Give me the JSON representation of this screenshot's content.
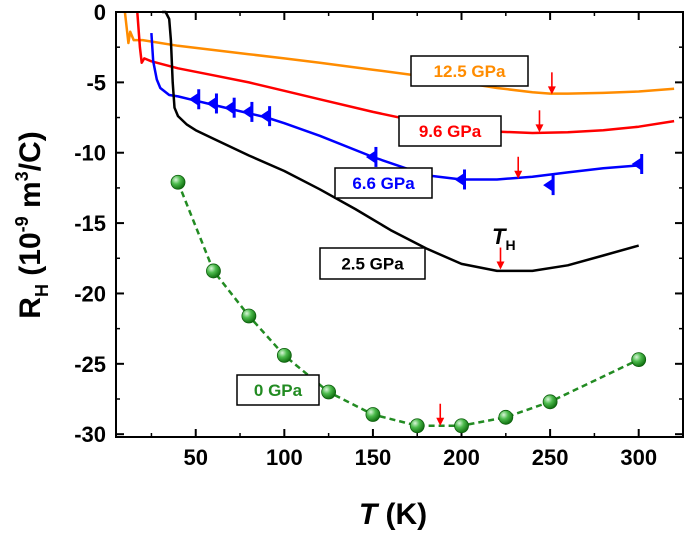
{
  "chart_data": {
    "type": "line",
    "title": "",
    "xlabel": {
      "italic": "T",
      "rest": " (K)"
    },
    "ylabel": {
      "base": "R",
      "sub": "H",
      "pre": " (10",
      "exp": "-9",
      "mid": " m",
      "exp2": "3",
      "post": "/C)"
    },
    "xlim": [
      5,
      325
    ],
    "ylim": [
      -30.2,
      0
    ],
    "xticks": [
      50,
      100,
      150,
      200,
      250,
      300
    ],
    "yticks": [
      0,
      -5,
      -10,
      -15,
      -20,
      -25,
      -30
    ],
    "annotation": {
      "italic": "T",
      "sub": "H"
    },
    "series": [
      {
        "name": "12.5 GPa",
        "label": "12.5 GPa",
        "color": "#ff8c00",
        "label_boxed": true,
        "x": [
          10,
          12,
          13,
          15,
          20,
          40,
          60,
          80,
          100,
          120,
          150,
          180,
          200,
          220,
          240,
          250,
          260,
          280,
          300,
          320
        ],
        "y": [
          0,
          -2.2,
          -1.4,
          -2.0,
          -2.0,
          -2.4,
          -2.7,
          -3.0,
          -3.3,
          -3.6,
          -4.1,
          -4.6,
          -5.0,
          -5.4,
          -5.7,
          -5.8,
          -5.8,
          -5.75,
          -5.65,
          -5.45
        ],
        "marker_x": 251,
        "marker_y": -5.85
      },
      {
        "name": "9.6 GPa",
        "label": "9.6 GPa",
        "color": "#ff0000",
        "label_boxed": true,
        "x": [
          17,
          18.5,
          19.5,
          21,
          25,
          40,
          60,
          80,
          100,
          120,
          150,
          180,
          200,
          220,
          240,
          260,
          280,
          300,
          320
        ],
        "y": [
          0,
          -2.5,
          -3.6,
          -3.3,
          -3.5,
          -4.0,
          -4.5,
          -5.0,
          -5.6,
          -6.2,
          -7.1,
          -7.9,
          -8.3,
          -8.5,
          -8.6,
          -8.55,
          -8.4,
          -8.15,
          -7.75
        ],
        "marker_x": 244,
        "marker_y": -8.55
      },
      {
        "name": "6.6 GPa",
        "label": "6.6 GPa",
        "color": "#0000ff",
        "label_boxed": true,
        "x": [
          25,
          26,
          28,
          30,
          35,
          40,
          50,
          60,
          70,
          80,
          90,
          100,
          120,
          150,
          180,
          200,
          220,
          240,
          260,
          280,
          300
        ],
        "y": [
          -1.5,
          -3.5,
          -4.8,
          -5.4,
          -5.9,
          -6.0,
          -6.3,
          -6.6,
          -6.9,
          -7.2,
          -7.5,
          -7.9,
          -8.8,
          -10.3,
          -11.6,
          -11.9,
          -11.9,
          -11.7,
          -11.4,
          -11.1,
          -10.9
        ],
        "markers_x": [
          50,
          60,
          70,
          80,
          90,
          150,
          200,
          250,
          300
        ],
        "markers_y": [
          -6.2,
          -6.5,
          -6.8,
          -7.1,
          -7.4,
          -10.3,
          -11.9,
          -12.3,
          -10.8
        ],
        "marker_x": 232,
        "marker_y": -11.85
      },
      {
        "name": "2.5 GPa",
        "label": "2.5 GPa",
        "color": "#000000",
        "label_boxed": true,
        "x": [
          31,
          33,
          35,
          36,
          37,
          38,
          40,
          45,
          50,
          60,
          70,
          80,
          100,
          120,
          140,
          160,
          180,
          200,
          220,
          240,
          260,
          280,
          300
        ],
        "y": [
          0,
          0,
          -0.5,
          -2.0,
          -5.0,
          -6.8,
          -7.4,
          -8.0,
          -8.4,
          -9.0,
          -9.6,
          -10.2,
          -11.3,
          -12.6,
          -14.0,
          -15.5,
          -16.8,
          -17.9,
          -18.4,
          -18.4,
          -18.0,
          -17.3,
          -16.6
        ],
        "marker_x": 222,
        "marker_y": -18.3
      },
      {
        "name": "0 GPa",
        "label": "0 GPa",
        "color": "#228b22",
        "label_boxed": true,
        "dashed": true,
        "x": [
          40,
          60,
          80,
          100,
          125,
          150,
          175,
          200,
          225,
          250,
          300
        ],
        "y": [
          -12.1,
          -18.4,
          -21.6,
          -24.4,
          -27.0,
          -28.6,
          -29.4,
          -29.4,
          -28.8,
          -27.7,
          -24.7
        ],
        "marker_x": 188,
        "marker_y": -29.4
      }
    ]
  }
}
